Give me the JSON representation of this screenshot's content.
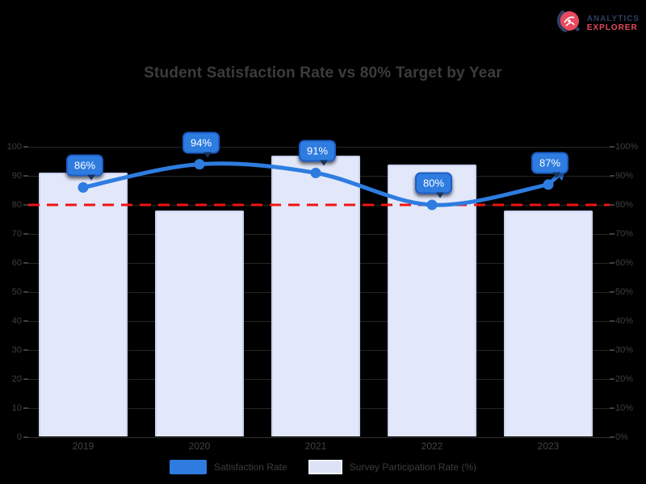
{
  "page": {
    "background": "#000000"
  },
  "logo": {
    "icon": "globe-compass-icon",
    "line1": "ANALYTICS",
    "line2": "EXPLORER",
    "icon_colors": {
      "circle": "#e8495f",
      "swoosh": "#2e3f63",
      "detail": "#ffffff"
    }
  },
  "chart_data": {
    "type": "bar",
    "subtype": "bar-line-combo",
    "title": "Student Satisfaction Rate vs 80% Target by Year",
    "categories": [
      "2019",
      "2020",
      "2021",
      "2022",
      "2023"
    ],
    "series": [
      {
        "name": "Satisfaction Rate",
        "type": "line",
        "axis": "left",
        "color": "#2e7ce0",
        "values": [
          86,
          94,
          91,
          80,
          87
        ],
        "point_labels": [
          "86%",
          "94%",
          "91%",
          "80%",
          "87%"
        ],
        "label_bubble": {
          "fill": "#2e7ce0",
          "border": "#1d5ec7",
          "text_color": "#ffffff"
        },
        "end_arrow": true
      },
      {
        "name": "Survey Participation Rate (%)",
        "type": "bar",
        "axis": "right",
        "color": "#e2e8fa",
        "border_color": "#c9d3ef",
        "values": [
          91,
          78,
          97,
          94,
          78
        ]
      }
    ],
    "target_line": {
      "value": 80,
      "color": "#f01414",
      "style": "dashed"
    },
    "left_axis": {
      "min": 0,
      "max": 100,
      "step": 10,
      "tick_labels": [
        "100",
        "90",
        "80",
        "70",
        "60",
        "50",
        "40",
        "30",
        "20",
        "10",
        "0"
      ]
    },
    "right_axis": {
      "min": 0,
      "max": 100,
      "step": 10,
      "tick_labels": [
        "100%",
        "90%",
        "80%",
        "70%",
        "60%",
        "50%",
        "40%",
        "30%",
        "20%",
        "10%",
        "0%"
      ]
    },
    "grid": true,
    "legend_position": "bottom",
    "xlabel": "",
    "ylabel": ""
  },
  "legend": [
    {
      "label": "Satisfaction Rate",
      "swatch_color": "#2e7ce0"
    },
    {
      "label": "Survey Participation Rate (%)",
      "swatch_color": "#dde3f7"
    }
  ]
}
